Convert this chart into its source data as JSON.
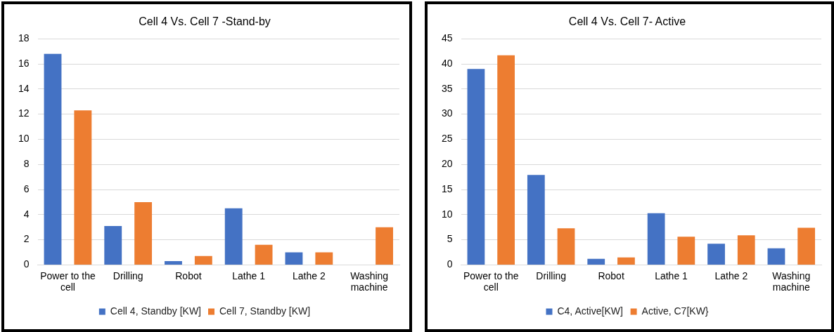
{
  "chart_data": [
    {
      "type": "bar",
      "title": "Cell 4 Vs. Cell 7 -Stand-by",
      "categories": [
        "Power to the cell",
        "Drilling",
        "Robot",
        "Lathe 1",
        "Lathe 2",
        "Washing machine"
      ],
      "series": [
        {
          "name": "Cell 4, Standby [KW]",
          "color": "#4472c4",
          "values": [
            16.8,
            3.1,
            0.3,
            4.5,
            1.0,
            0
          ]
        },
        {
          "name": "Cell 7, Standby [KW]",
          "color": "#ed7d31",
          "values": [
            12.3,
            5.0,
            0.7,
            1.6,
            1.0,
            3.0
          ]
        }
      ],
      "ylim": [
        0,
        18
      ],
      "yticks": [
        0,
        2,
        4,
        6,
        8,
        10,
        12,
        14,
        16,
        18
      ],
      "grid": "y",
      "legend": "bottom"
    },
    {
      "type": "bar",
      "title": "Cell 4 Vs. Cell 7- Active",
      "categories": [
        "Power to the cell",
        "Drilling",
        "Robot",
        "Lathe 1",
        "Lathe 2",
        "Washing machine"
      ],
      "series": [
        {
          "name": "C4, Active[KW]",
          "color": "#4472c4",
          "values": [
            39.0,
            17.9,
            1.2,
            10.3,
            4.2,
            3.3
          ]
        },
        {
          "name": "Active, C7[KW}",
          "color": "#ed7d31",
          "values": [
            41.7,
            7.3,
            1.5,
            5.6,
            5.9,
            7.4
          ]
        }
      ],
      "ylim": [
        0,
        45
      ],
      "yticks": [
        0,
        5,
        10,
        15,
        20,
        25,
        30,
        35,
        40,
        45
      ],
      "grid": "y",
      "legend": "bottom"
    }
  ]
}
